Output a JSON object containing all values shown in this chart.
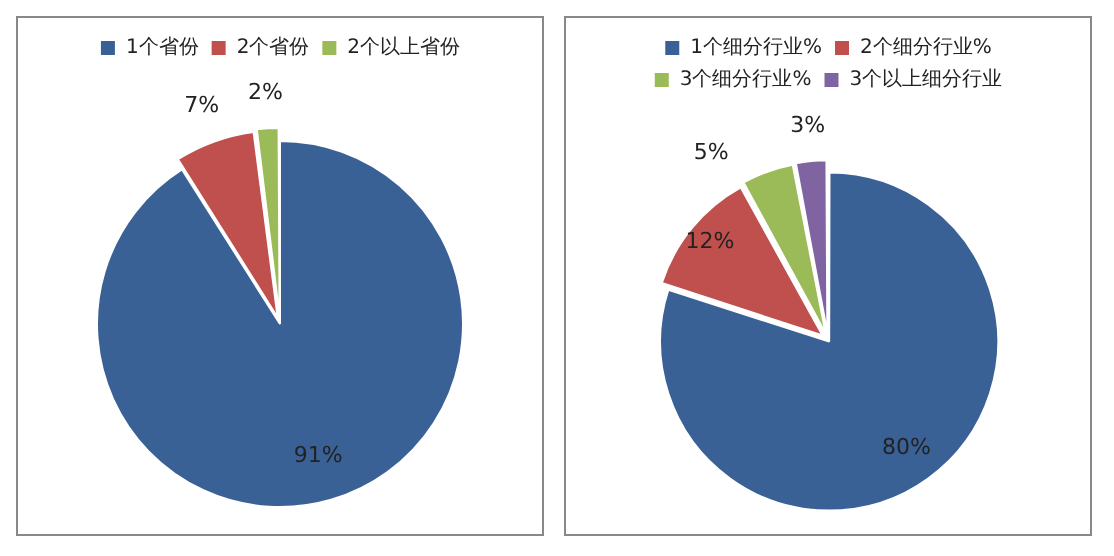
{
  "chart_data": [
    {
      "type": "pie",
      "categories": [
        "1个省份",
        "2个省份",
        "2个以上省份"
      ],
      "values": [
        91,
        7,
        2
      ],
      "colors": [
        "#3a6196",
        "#c0504d",
        "#9bbb59"
      ],
      "value_labels": [
        "91%",
        "7%",
        "2%"
      ],
      "legend": "top"
    },
    {
      "type": "pie",
      "categories": [
        "1个细分行业%",
        "2个细分行业%",
        "3个细分行业%",
        "3个以上细分行业"
      ],
      "values": [
        80,
        12,
        5,
        3
      ],
      "colors": [
        "#3a6196",
        "#c0504d",
        "#9bbb59",
        "#8064a2"
      ],
      "value_labels": [
        "80%",
        "12%",
        "5%",
        "3%"
      ],
      "legend": "top"
    }
  ]
}
